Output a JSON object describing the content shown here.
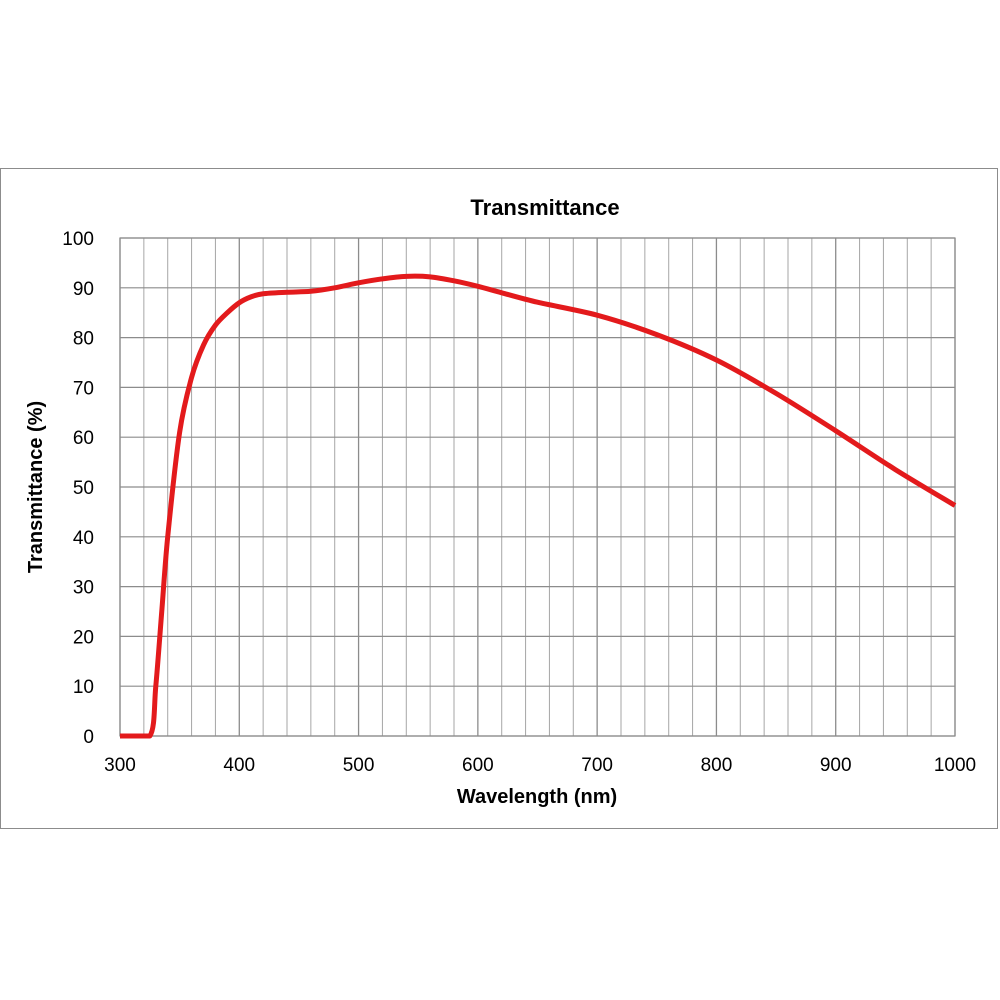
{
  "chart_data": {
    "type": "line",
    "title": "Transmittance",
    "xlabel": "Wavelength (nm)",
    "ylabel": "Transmittance (%)",
    "xlim": [
      300,
      1000
    ],
    "ylim": [
      0,
      100
    ],
    "x_ticks": [
      300,
      400,
      500,
      600,
      700,
      800,
      900,
      1000
    ],
    "y_ticks": [
      0,
      10,
      20,
      30,
      40,
      50,
      60,
      70,
      80,
      90,
      100
    ],
    "x_minor_step": 20,
    "grid": true,
    "legend": "none",
    "series": [
      {
        "color": "#e31a1c",
        "points": [
          [
            300,
            0
          ],
          [
            325,
            0
          ],
          [
            330,
            10
          ],
          [
            335,
            25
          ],
          [
            340,
            40
          ],
          [
            350,
            61
          ],
          [
            360,
            72
          ],
          [
            370,
            78.5
          ],
          [
            380,
            82.5
          ],
          [
            390,
            85
          ],
          [
            400,
            87
          ],
          [
            410,
            88.2
          ],
          [
            420,
            88.8
          ],
          [
            440,
            89.1
          ],
          [
            460,
            89.3
          ],
          [
            480,
            90.0
          ],
          [
            500,
            91.0
          ],
          [
            520,
            91.8
          ],
          [
            540,
            92.3
          ],
          [
            560,
            92.2
          ],
          [
            580,
            91.4
          ],
          [
            600,
            90.3
          ],
          [
            620,
            89.0
          ],
          [
            650,
            87.1
          ],
          [
            700,
            84.5
          ],
          [
            750,
            80.6
          ],
          [
            800,
            75.5
          ],
          [
            850,
            68.8
          ],
          [
            900,
            61.3
          ],
          [
            950,
            53.5
          ],
          [
            1000,
            46.3
          ]
        ]
      }
    ]
  }
}
